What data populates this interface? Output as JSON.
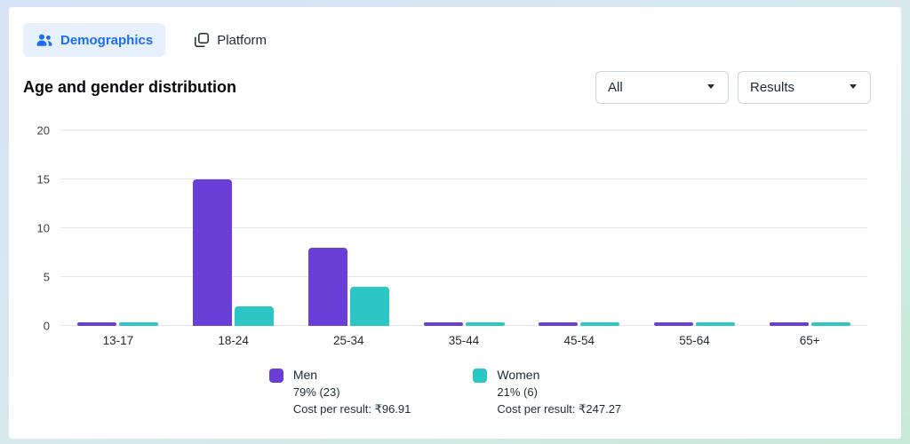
{
  "tabs": {
    "demographics": {
      "label": "Demographics",
      "active": true
    },
    "platform": {
      "label": "Platform",
      "active": false
    }
  },
  "section": {
    "title": "Age and gender distribution"
  },
  "filters": {
    "breakdown": {
      "value": "All"
    },
    "metric": {
      "value": "Results"
    }
  },
  "chart_data": {
    "type": "bar",
    "title": "Age and gender distribution",
    "categories": [
      "13-17",
      "18-24",
      "25-34",
      "35-44",
      "45-54",
      "55-64",
      "65+"
    ],
    "series": [
      {
        "name": "Men",
        "color": "#6a3fd8",
        "values": [
          0,
          15,
          8,
          0,
          0,
          0,
          0
        ],
        "share": "79% (23)",
        "cost_per_result": "Cost per result: ₹96.91"
      },
      {
        "name": "Women",
        "color": "#2cc7c4",
        "values": [
          0,
          2,
          4,
          0,
          0,
          0,
          0
        ],
        "share": "21% (6)",
        "cost_per_result": "Cost per result: ₹247.27"
      }
    ],
    "ylim": [
      0,
      20
    ],
    "yticks": [
      0,
      5,
      10,
      15,
      20
    ],
    "grid": true,
    "legend_position": "bottom"
  },
  "colors": {
    "tab_active_bg": "#e7f0fd",
    "tab_active_text": "#1b6ef3",
    "gridline": "#e4e6ea"
  }
}
